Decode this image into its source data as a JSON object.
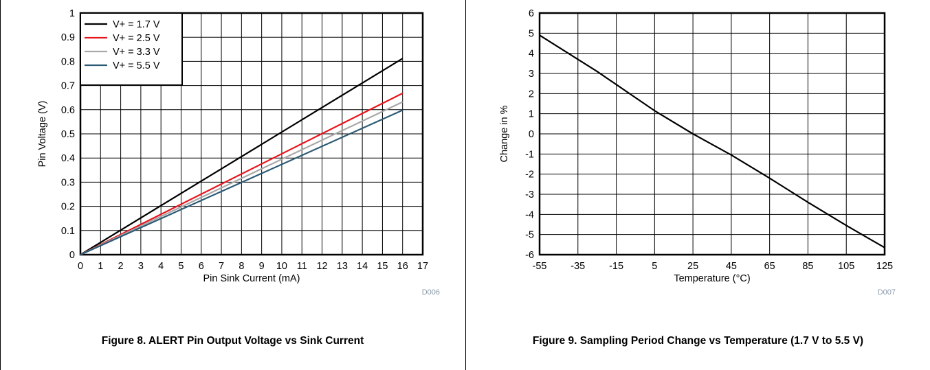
{
  "chart_data": [
    {
      "type": "line",
      "figure_code": "D006",
      "caption": "Figure 8. ALERT Pin Output Voltage vs Sink Current",
      "xlabel": "Pin Sink Current (mA)",
      "ylabel": "Pin Voltage (V)",
      "xlim": [
        0,
        17
      ],
      "ylim": [
        0,
        1
      ],
      "x_ticks": [
        "0",
        "1",
        "2",
        "3",
        "4",
        "5",
        "6",
        "7",
        "8",
        "9",
        "10",
        "11",
        "12",
        "13",
        "14",
        "15",
        "16",
        "17"
      ],
      "y_ticks": [
        "0",
        "0.1",
        "0.2",
        "0.3",
        "0.4",
        "0.5",
        "0.6",
        "0.7",
        "0.8",
        "0.9",
        "1"
      ],
      "grid": true,
      "legend_position": "top-left",
      "series": [
        {
          "name": "V+ = 1.7 V",
          "color": "#000000",
          "x": [
            0,
            16
          ],
          "y": [
            0,
            0.812
          ]
        },
        {
          "name": "V+ = 2.5 V",
          "color": "#e8141c",
          "x": [
            0,
            16
          ],
          "y": [
            0,
            0.668
          ]
        },
        {
          "name": "V+ = 3.3 V",
          "color": "#a8a8a8",
          "x": [
            0,
            16
          ],
          "y": [
            0,
            0.632
          ]
        },
        {
          "name": "V+ = 5.5 V",
          "color": "#2c5a74",
          "x": [
            0,
            16
          ],
          "y": [
            0,
            0.598
          ]
        }
      ]
    },
    {
      "type": "line",
      "figure_code": "D007",
      "caption": "Figure 9. Sampling Period Change vs Temperature (1.7 V to 5.5 V)",
      "xlabel": "Temperature (°C)",
      "ylabel": "Change in %",
      "xlim": [
        -55,
        125
      ],
      "ylim": [
        -6,
        6
      ],
      "x_ticks": [
        "-55",
        "-35",
        "-15",
        "5",
        "25",
        "45",
        "65",
        "85",
        "105",
        "125"
      ],
      "y_ticks": [
        "-6",
        "-5",
        "-4",
        "-3",
        "-2",
        "-1",
        "0",
        "1",
        "2",
        "3",
        "4",
        "5",
        "6"
      ],
      "grid": true,
      "series": [
        {
          "color": "#000000",
          "x": [
            -55,
            -25,
            5,
            25,
            45,
            65,
            85,
            105,
            125
          ],
          "y": [
            4.9,
            3.1,
            1.15,
            0.0,
            -1.05,
            -2.2,
            -3.4,
            -4.55,
            -5.65
          ]
        }
      ]
    }
  ]
}
